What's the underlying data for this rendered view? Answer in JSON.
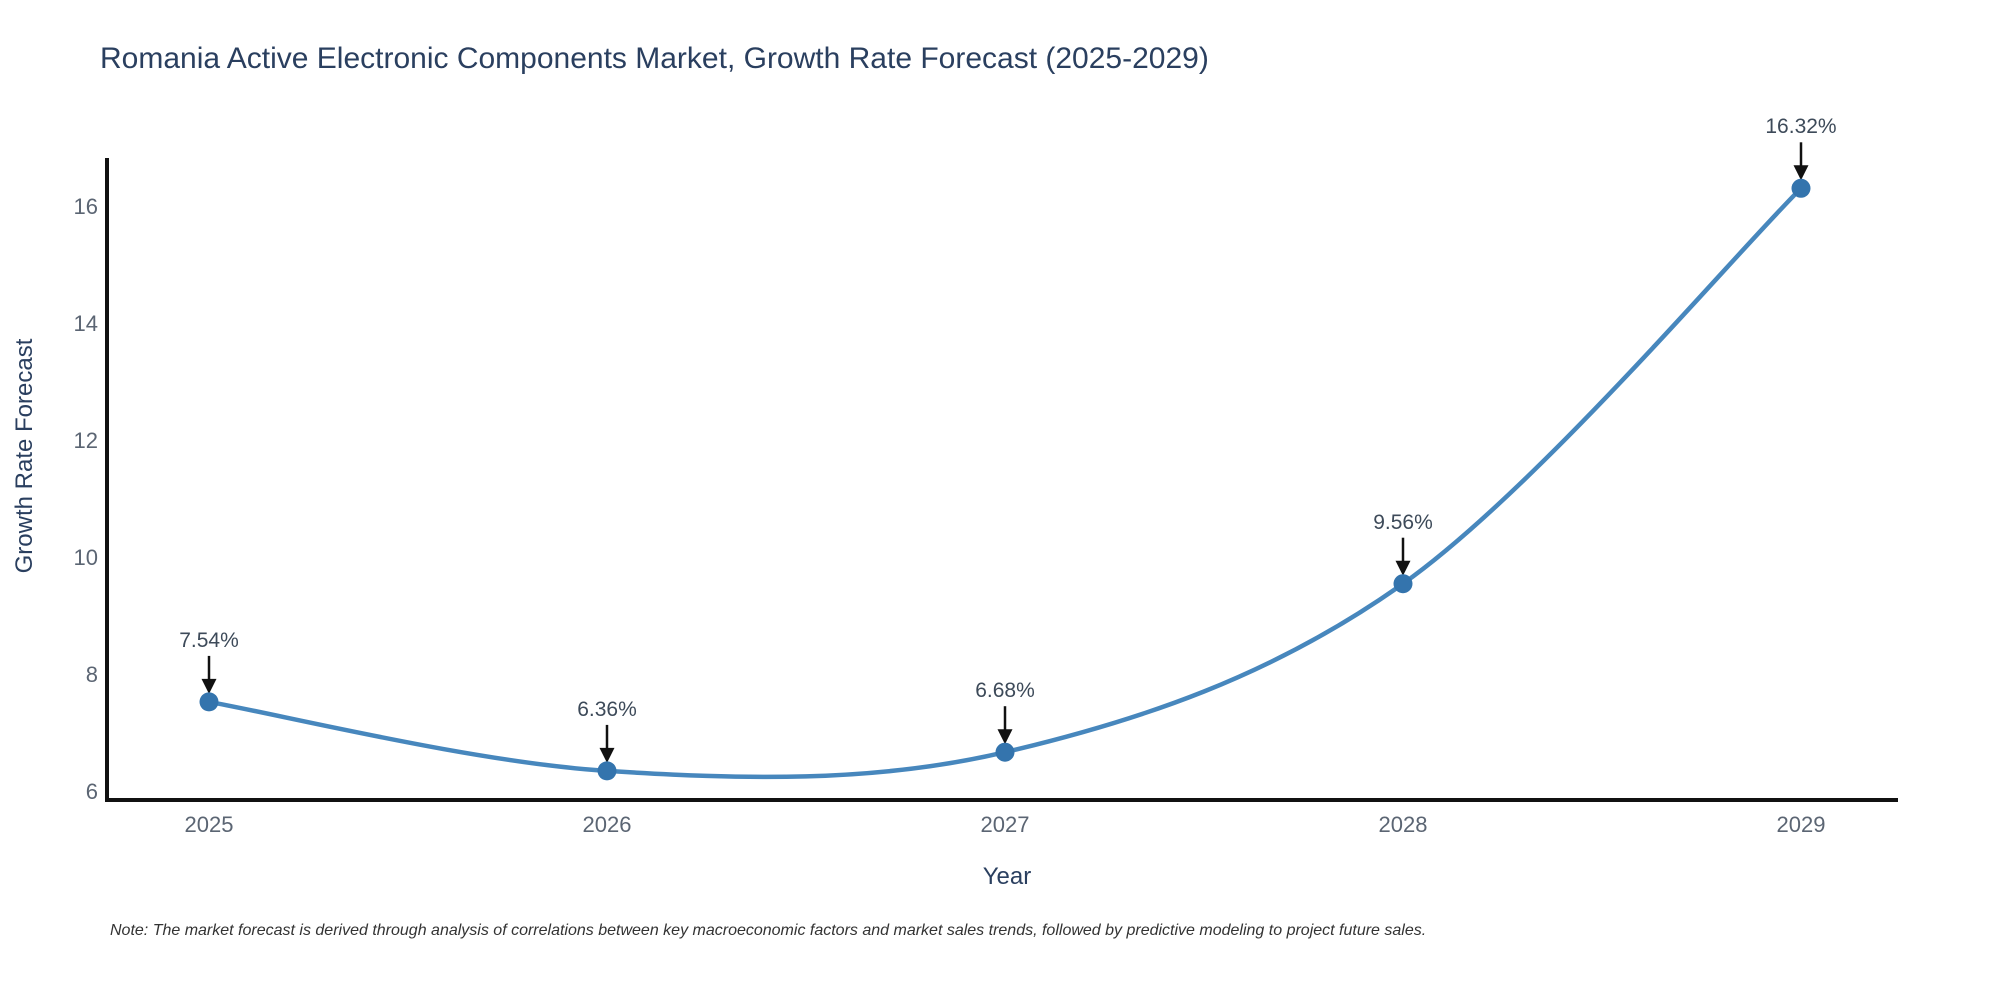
{
  "title": "Romania Active Electronic Components Market, Growth Rate Forecast (2025-2029)",
  "note": "Note: The market forecast is derived through analysis of correlations between key macroeconomic factors and market sales trends, followed by predictive modeling to project future sales.",
  "chart_data": {
    "type": "line",
    "title": "Romania Active Electronic Components Market, Growth Rate Forecast (2025-2029)",
    "xlabel": "Year",
    "ylabel": "Growth Rate Forecast",
    "categories": [
      "2025",
      "2026",
      "2027",
      "2028",
      "2029"
    ],
    "values": [
      7.54,
      6.36,
      6.68,
      9.56,
      16.32
    ],
    "point_labels": [
      "7.54%",
      "6.36%",
      "6.68%",
      "9.56%",
      "16.32%"
    ],
    "yticks": [
      "6",
      "8",
      "10",
      "12",
      "14",
      "16"
    ],
    "ytick_values": [
      6,
      8,
      10,
      12,
      14,
      16
    ],
    "ylim": [
      5.83,
      17.0
    ],
    "grid": "off",
    "legend": "none",
    "line_shape": "spline",
    "line_color": "#4787bd",
    "marker_color": "#3474ad",
    "axis_color": "#111111",
    "arrow_color": "#111111"
  }
}
